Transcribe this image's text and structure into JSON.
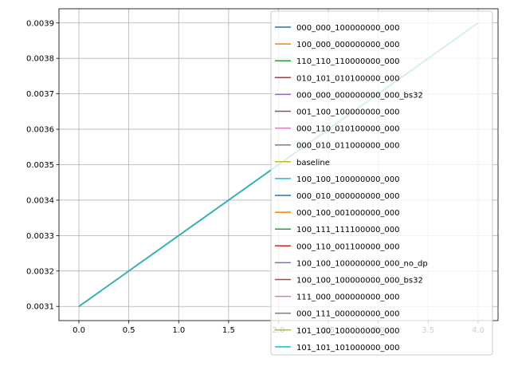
{
  "chart_data": {
    "type": "line",
    "title": "",
    "xlabel": "",
    "ylabel": "",
    "xlim": [
      -0.2,
      4.2
    ],
    "ylim": [
      0.00306,
      0.00394
    ],
    "grid": true,
    "legend_position": "top-right",
    "x_ticks": [
      0.0,
      0.5,
      1.0,
      1.5,
      2.0,
      2.5,
      3.0,
      3.5,
      4.0
    ],
    "x_tick_labels": [
      "0.0",
      "0.5",
      "1.0",
      "1.5",
      "2.0",
      "2.5",
      "3.0",
      "3.5",
      "4.0"
    ],
    "y_ticks": [
      0.0031,
      0.0032,
      0.0033,
      0.0034,
      0.0035,
      0.0036,
      0.0037,
      0.0038,
      0.0039
    ],
    "y_tick_labels": [
      "0.0031",
      "0.0032",
      "0.0033",
      "0.0034",
      "0.0035",
      "0.0036",
      "0.0037",
      "0.0038",
      "0.0039"
    ],
    "series": [
      {
        "name": "000_000_100000000_000",
        "color": "#1f77b4",
        "x": [
          0,
          4
        ],
        "y": [
          0.0031,
          0.0039
        ]
      },
      {
        "name": "100_000_000000000_000",
        "color": "#ff7f0e",
        "x": [
          0,
          4
        ],
        "y": [
          0.0031,
          0.0039
        ]
      },
      {
        "name": "110_110_110000000_000",
        "color": "#2ca02c",
        "x": [
          0,
          4
        ],
        "y": [
          0.0031,
          0.0039
        ]
      },
      {
        "name": "010_101_010100000_000",
        "color": "#d62728",
        "x": [
          0,
          4
        ],
        "y": [
          0.0031,
          0.0039
        ]
      },
      {
        "name": "000_000_000000000_000_bs32",
        "color": "#9467bd",
        "x": [
          0,
          4
        ],
        "y": [
          0.0031,
          0.0039
        ]
      },
      {
        "name": "001_100_100000000_000",
        "color": "#8c564b",
        "x": [
          0,
          4
        ],
        "y": [
          0.0031,
          0.0039
        ]
      },
      {
        "name": "000_110_010100000_000",
        "color": "#e377c2",
        "x": [
          0,
          4
        ],
        "y": [
          0.0031,
          0.0039
        ]
      },
      {
        "name": "000_010_011000000_000",
        "color": "#7f7f7f",
        "x": [
          0,
          4
        ],
        "y": [
          0.0031,
          0.0039
        ]
      },
      {
        "name": "baseline",
        "color": "#bcbd22",
        "x": [
          0,
          4
        ],
        "y": [
          0.0031,
          0.0039
        ]
      },
      {
        "name": "100_100_100000000_000",
        "color": "#17becf",
        "x": [
          0,
          4
        ],
        "y": [
          0.0031,
          0.0039
        ]
      },
      {
        "name": "000_010_000000000_000",
        "color": "#1f77b4",
        "x": [
          0,
          4
        ],
        "y": [
          0.0031,
          0.0039
        ]
      },
      {
        "name": "000_100_001000000_000",
        "color": "#ff7f0e",
        "x": [
          0,
          4
        ],
        "y": [
          0.0031,
          0.0039
        ]
      },
      {
        "name": "100_111_111100000_000",
        "color": "#2ca02c",
        "x": [
          0,
          4
        ],
        "y": [
          0.0031,
          0.0039
        ]
      },
      {
        "name": "000_110_001100000_000",
        "color": "#d62728",
        "x": [
          0,
          4
        ],
        "y": [
          0.0031,
          0.0039
        ]
      },
      {
        "name": "100_100_100000000_000_no_dp",
        "color": "#9467bd",
        "x": [
          0,
          4
        ],
        "y": [
          0.0031,
          0.0039
        ]
      },
      {
        "name": "100_100_100000000_000_bs32",
        "color": "#8c564b",
        "x": [
          0,
          4
        ],
        "y": [
          0.0031,
          0.0039
        ]
      },
      {
        "name": "111_000_000000000_000",
        "color": "#e377c2",
        "x": [
          0,
          4
        ],
        "y": [
          0.0031,
          0.0039
        ]
      },
      {
        "name": "000_111_000000000_000",
        "color": "#7f7f7f",
        "x": [
          0,
          4
        ],
        "y": [
          0.0031,
          0.0039
        ]
      },
      {
        "name": "101_100_100000000_000",
        "color": "#bcbd22",
        "x": [
          0,
          4
        ],
        "y": [
          0.0031,
          0.0039
        ]
      },
      {
        "name": "101_101_101000000_000",
        "color": "#17becf",
        "x": [
          0,
          4
        ],
        "y": [
          0.0031,
          0.0039
        ]
      }
    ]
  }
}
